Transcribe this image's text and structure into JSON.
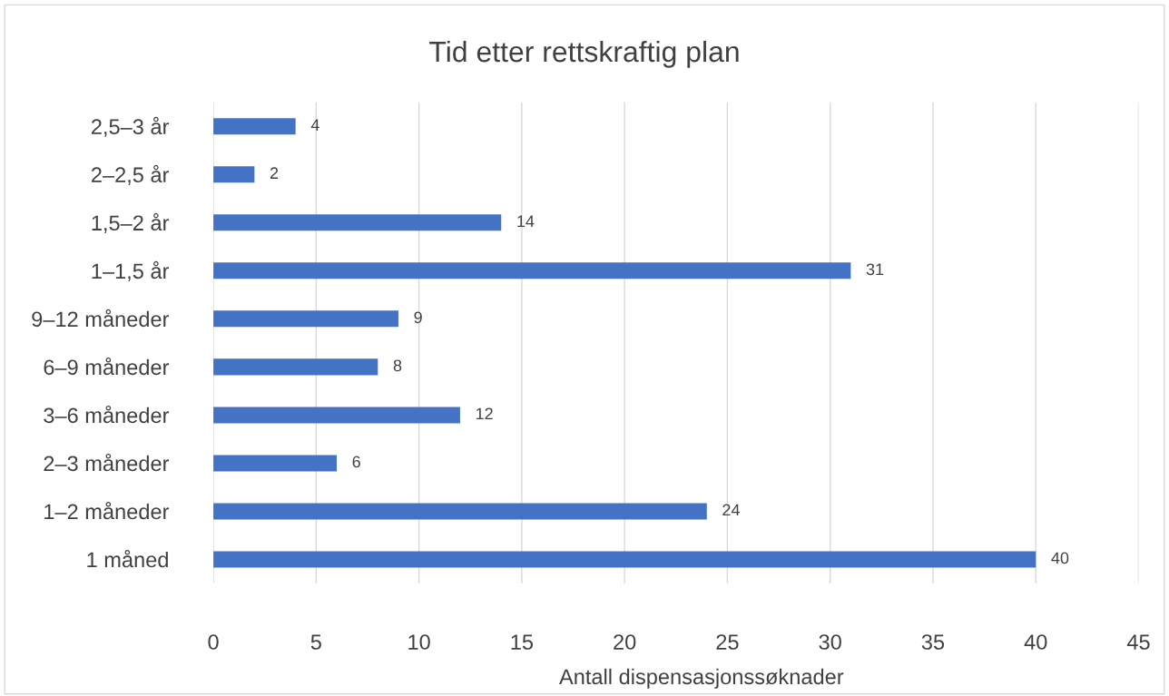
{
  "chart_data": {
    "type": "bar",
    "orientation": "horizontal",
    "title": "Tid etter rettskraftig plan",
    "xlabel": "Antall dispensasjonssøknader",
    "categories": [
      "2,5–3 år",
      "2–2,5 år",
      "1,5–2 år",
      "1–1,5 år",
      "9–12 måneder",
      "6–9 måneder",
      "3–6 måneder",
      "2–3 måneder",
      "1–2 måneder",
      "1 måned"
    ],
    "values": [
      4,
      2,
      14,
      31,
      9,
      8,
      12,
      6,
      24,
      40
    ],
    "color": "#4472c4",
    "xlim": [
      0,
      45
    ],
    "xticks": [
      0,
      5,
      10,
      15,
      20,
      25,
      30,
      35,
      40,
      45
    ],
    "grid": "x",
    "data_labels": true
  }
}
